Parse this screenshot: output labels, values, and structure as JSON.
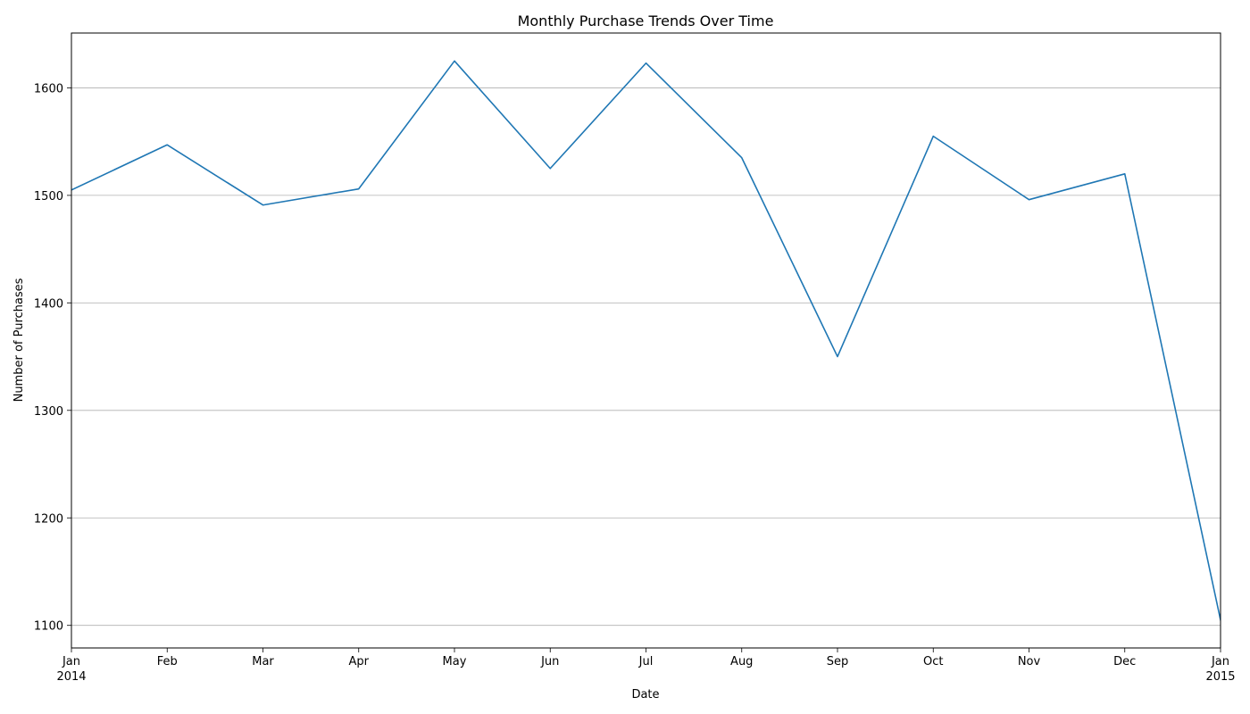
{
  "chart_data": {
    "type": "line",
    "title": "Monthly Purchase Trends Over Time",
    "xlabel": "Date",
    "ylabel": "Number of Purchases",
    "x": [
      "2014-01",
      "2014-02",
      "2014-03",
      "2014-04",
      "2014-05",
      "2014-06",
      "2014-07",
      "2014-08",
      "2014-09",
      "2014-10",
      "2014-11",
      "2014-12",
      "2015-01"
    ],
    "x_tick_labels": [
      {
        "month": "Jan",
        "year": "2014"
      },
      {
        "month": "Feb",
        "year": ""
      },
      {
        "month": "Mar",
        "year": ""
      },
      {
        "month": "Apr",
        "year": ""
      },
      {
        "month": "May",
        "year": ""
      },
      {
        "month": "Jun",
        "year": ""
      },
      {
        "month": "Jul",
        "year": ""
      },
      {
        "month": "Aug",
        "year": ""
      },
      {
        "month": "Sep",
        "year": ""
      },
      {
        "month": "Oct",
        "year": ""
      },
      {
        "month": "Nov",
        "year": ""
      },
      {
        "month": "Dec",
        "year": ""
      },
      {
        "month": "Jan",
        "year": "2015"
      }
    ],
    "series": [
      {
        "values": [
          1505,
          1547,
          1491,
          1506,
          1625,
          1525,
          1623,
          1535,
          1350,
          1555,
          1496,
          1520,
          1105
        ],
        "color": "#1f77b4"
      }
    ],
    "ylim": [
      1079,
      1651
    ],
    "y_ticks": [
      1100,
      1200,
      1300,
      1400,
      1500,
      1600
    ],
    "grid": "horizontal"
  }
}
